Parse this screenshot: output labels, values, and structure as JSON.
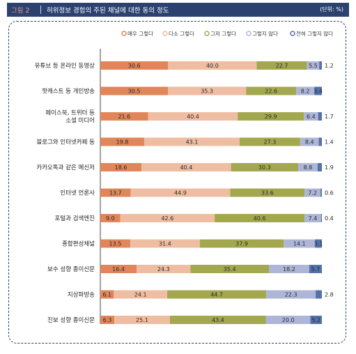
{
  "header": {
    "figure_label": "그림 2",
    "title": "허위정보 경험의 주된 채널에 대한 동의 정도",
    "unit": "(단위: %)"
  },
  "colors": [
    "#e0865a",
    "#efbda2",
    "#a3a84f",
    "#aeb6d7",
    "#5272a8"
  ],
  "chart_data": {
    "type": "bar",
    "orientation": "horizontal",
    "stacked": true,
    "legend_position": "top-right",
    "xlim": [
      0,
      100
    ],
    "categories": [
      "유튜브 등 온라인 동영상",
      "팟캐스트 등 개인방송",
      "페이스북, 트위터 등 소셜 미디어",
      "블로그와 인터넷카페 등",
      "카카오톡과 같은 메신저",
      "인터넷 언론사",
      "포털과 검색엔진",
      "종합편성채널",
      "보수 성향 종이신문",
      "지상파방송",
      "진보 성향 종이신문"
    ],
    "category_lines": [
      [
        "유튜브 등 온라인 동영상"
      ],
      [
        "팟캐스트 등 개인방송"
      ],
      [
        "페이스북, 트위터 등",
        "소셜 미디어"
      ],
      [
        "블로그와 인터넷카페 등"
      ],
      [
        "카카오톡과 같은 메신저"
      ],
      [
        "인터넷 언론사"
      ],
      [
        "포털과 검색엔진"
      ],
      [
        "종합편성채널"
      ],
      [
        "보수 성향 종이신문"
      ],
      [
        "지상파방송"
      ],
      [
        "진보 성향 종이신문"
      ]
    ],
    "series": [
      {
        "name": "매우 그렇다",
        "values": [
          30.6,
          30.5,
          21.6,
          19.8,
          18.6,
          13.7,
          9.0,
          13.5,
          16.4,
          6.1,
          6.3
        ]
      },
      {
        "name": "다소 그렇다",
        "values": [
          40.0,
          35.3,
          40.4,
          43.1,
          40.4,
          44.9,
          42.6,
          31.4,
          24.3,
          24.1,
          25.1
        ]
      },
      {
        "name": "그저 그렇다",
        "values": [
          22.7,
          22.6,
          29.9,
          27.3,
          30.3,
          33.6,
          40.6,
          37.9,
          35.4,
          44.7,
          43.4
        ]
      },
      {
        "name": "그렇지 않다",
        "values": [
          5.5,
          8.2,
          6.4,
          8.4,
          8.8,
          7.2,
          7.4,
          14.1,
          18.2,
          22.3,
          20.0
        ]
      },
      {
        "name": "전혀 그렇지 않다",
        "values": [
          1.2,
          3.4,
          1.7,
          1.4,
          1.9,
          0.6,
          0.4,
          3.1,
          5.7,
          2.8,
          5.2
        ]
      }
    ],
    "labels": [
      [
        "30.6",
        "40.0",
        "22.7",
        "5.5",
        "1.2"
      ],
      [
        "30.5",
        "35.3",
        "22.6",
        "8.2",
        "3.4"
      ],
      [
        "21.6",
        "40.4",
        "29.9",
        "6.4",
        "1.7"
      ],
      [
        "19.8",
        "43.1",
        "27.3",
        "8.4",
        "1.4"
      ],
      [
        "18.6",
        "40.4",
        "30.3",
        "8.8",
        "1.9"
      ],
      [
        "13.7",
        "44.9",
        "33.6",
        "7.2",
        "0.6"
      ],
      [
        "9.0",
        "42.6",
        "40.6",
        "7.4",
        "0.4"
      ],
      [
        "13.5",
        "31.4",
        "37.9",
        "14.1",
        "3.1"
      ],
      [
        "16.4",
        "24.3",
        "35.4",
        "18.2",
        "5.7"
      ],
      [
        "6.1",
        "24.1",
        "44.7",
        "22.3",
        "2.8"
      ],
      [
        "6.3",
        "25.1",
        "43.4",
        "20.0",
        "5.2"
      ]
    ]
  }
}
